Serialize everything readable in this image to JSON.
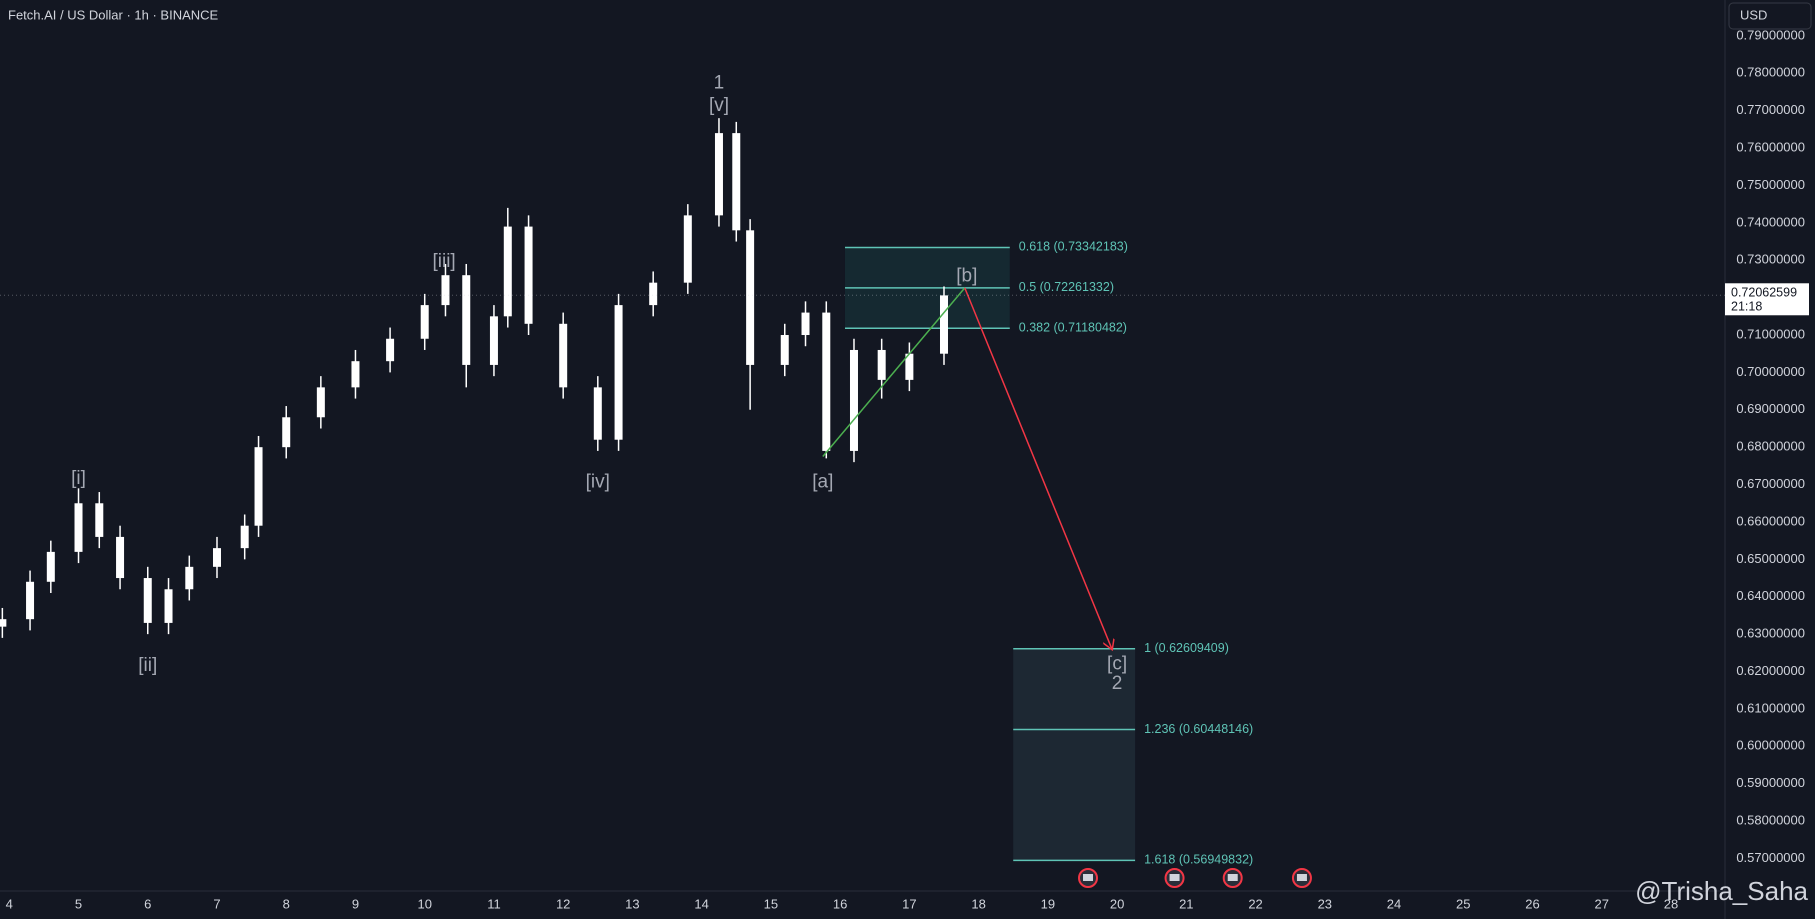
{
  "header": {
    "symbol": "Fetch.AI / US Dollar · 1h · BINANCE",
    "currency": "USD",
    "watermark": "@Trisha_Saha"
  },
  "chart_data": {
    "type": "candlestick",
    "x": [
      3.9,
      4.3,
      4.6,
      5.0,
      5.3,
      5.6,
      6.0,
      6.3,
      6.6,
      7.0,
      7.4,
      7.6,
      8.0,
      8.5,
      9.0,
      9.5,
      10.0,
      10.3,
      10.6,
      11.0,
      11.2,
      11.5,
      12.0,
      12.5,
      12.8,
      13.3,
      13.8,
      14.25,
      14.5,
      14.7,
      15.2,
      15.5,
      15.8,
      16.2,
      16.6,
      17.0,
      17.5
    ],
    "open": [
      0.632,
      0.634,
      0.644,
      0.652,
      0.665,
      0.656,
      0.645,
      0.633,
      0.642,
      0.648,
      0.653,
      0.659,
      0.68,
      0.688,
      0.696,
      0.703,
      0.709,
      0.718,
      0.726,
      0.702,
      0.715,
      0.739,
      0.713,
      0.696,
      0.682,
      0.718,
      0.724,
      0.742,
      0.764,
      0.738,
      0.702,
      0.71,
      0.716,
      0.679,
      0.706,
      0.698,
      0.705
    ],
    "high": [
      0.637,
      0.647,
      0.655,
      0.669,
      0.668,
      0.659,
      0.648,
      0.645,
      0.651,
      0.656,
      0.662,
      0.683,
      0.691,
      0.699,
      0.706,
      0.712,
      0.721,
      0.729,
      0.729,
      0.718,
      0.744,
      0.742,
      0.716,
      0.699,
      0.721,
      0.727,
      0.745,
      0.768,
      0.767,
      0.741,
      0.713,
      0.719,
      0.719,
      0.709,
      0.709,
      0.708,
      0.723
    ],
    "low": [
      0.629,
      0.631,
      0.641,
      0.649,
      0.653,
      0.642,
      0.63,
      0.63,
      0.639,
      0.645,
      0.65,
      0.656,
      0.677,
      0.685,
      0.693,
      0.7,
      0.706,
      0.715,
      0.696,
      0.699,
      0.712,
      0.71,
      0.693,
      0.679,
      0.679,
      0.715,
      0.721,
      0.739,
      0.735,
      0.69,
      0.699,
      0.707,
      0.677,
      0.676,
      0.693,
      0.695,
      0.702
    ],
    "close": [
      0.634,
      0.644,
      0.652,
      0.665,
      0.656,
      0.645,
      0.633,
      0.642,
      0.648,
      0.653,
      0.659,
      0.68,
      0.688,
      0.696,
      0.703,
      0.709,
      0.718,
      0.726,
      0.702,
      0.715,
      0.739,
      0.713,
      0.696,
      0.682,
      0.718,
      0.724,
      0.742,
      0.764,
      0.738,
      0.702,
      0.71,
      0.716,
      0.679,
      0.706,
      0.698,
      0.705,
      0.7206
    ],
    "color": "#ffffff",
    "xlim": [
      3.866,
      28.78
    ],
    "ylim": [
      0.5613,
      0.7996
    ],
    "xticks": [
      4,
      5,
      6,
      7,
      8,
      9,
      10,
      11,
      12,
      13,
      14,
      15,
      16,
      17,
      18,
      19,
      20,
      21,
      22,
      23,
      24,
      25,
      26,
      27,
      28
    ],
    "yticks": [
      {
        "value": 0.57,
        "label": "0.57000000"
      },
      {
        "value": 0.58,
        "label": "0.58000000"
      },
      {
        "value": 0.59,
        "label": "0.59000000"
      },
      {
        "value": 0.6,
        "label": "0.60000000"
      },
      {
        "value": 0.61,
        "label": "0.61000000"
      },
      {
        "value": 0.62,
        "label": "0.62000000"
      },
      {
        "value": 0.63,
        "label": "0.63000000"
      },
      {
        "value": 0.64,
        "label": "0.64000000"
      },
      {
        "value": 0.65,
        "label": "0.65000000"
      },
      {
        "value": 0.66,
        "label": "0.66000000"
      },
      {
        "value": 0.67,
        "label": "0.67000000"
      },
      {
        "value": 0.68,
        "label": "0.68000000"
      },
      {
        "value": 0.69,
        "label": "0.69000000"
      },
      {
        "value": 0.7,
        "label": "0.70000000"
      },
      {
        "value": 0.71,
        "label": "0.71000000"
      },
      {
        "value": 0.72,
        "label": "0.72000000"
      },
      {
        "value": 0.73,
        "label": "0.73000000"
      },
      {
        "value": 0.74,
        "label": "0.74000000"
      },
      {
        "value": 0.75,
        "label": "0.75000000"
      },
      {
        "value": 0.76,
        "label": "0.76000000"
      },
      {
        "value": 0.77,
        "label": "0.77000000"
      },
      {
        "value": 0.78,
        "label": "0.78000000"
      },
      {
        "value": 0.79,
        "label": "0.79000000"
      }
    ],
    "grid": false,
    "last_price": 0.72062599,
    "countdown": "21:18",
    "annotations": [
      {
        "text": "[i]",
        "x": 5.0,
        "y": 0.6715
      },
      {
        "text": "[ii]",
        "x": 6.0,
        "y": 0.6215
      },
      {
        "text": "[iii]",
        "x": 10.28,
        "y": 0.7295
      },
      {
        "text": "[iv]",
        "x": 12.5,
        "y": 0.6705
      },
      {
        "text": "1",
        "x": 14.25,
        "y": 0.7773
      },
      {
        "text": "[v]",
        "x": 14.25,
        "y": 0.7713
      },
      {
        "text": "[a]",
        "x": 15.75,
        "y": 0.6705
      },
      {
        "text": "[b]",
        "x": 17.83,
        "y": 0.7257
      },
      {
        "text": "[c]",
        "x": 20.0,
        "y": 0.6219
      },
      {
        "text": "2",
        "x": 20.0,
        "y": 0.6166
      }
    ],
    "lines": [
      {
        "color": "#4caf50",
        "x": [
          15.75,
          17.8
        ],
        "y": [
          0.6775,
          0.7226
        ],
        "arrow": false
      },
      {
        "color": "#f23645",
        "x": [
          17.8,
          19.93
        ],
        "y": [
          0.7226,
          0.6258
        ],
        "arrow": true
      }
    ],
    "fib_boxes": [
      {
        "x": [
          16.07,
          18.45
        ],
        "fill": "rgba(38,166,154,0.13)",
        "levels": [
          {
            "value": 0.73342183,
            "label": "0.618 (0.73342183)"
          },
          {
            "value": 0.72261332,
            "label": "0.5 (0.72261332)"
          },
          {
            "value": 0.71180482,
            "label": "0.382 (0.71180482)"
          }
        ]
      },
      {
        "x": [
          18.5,
          20.26
        ],
        "fill": "rgba(90,130,140,0.16)",
        "levels": [
          {
            "value": 0.62609409,
            "label": "1 (0.62609409)"
          },
          {
            "value": 0.60448146,
            "label": "1.236 (0.60448146)"
          },
          {
            "value": 0.56949832,
            "label": "1.618 (0.56949832)"
          }
        ]
      }
    ],
    "events": [
      19.58,
      20.83,
      21.67,
      22.67
    ]
  }
}
